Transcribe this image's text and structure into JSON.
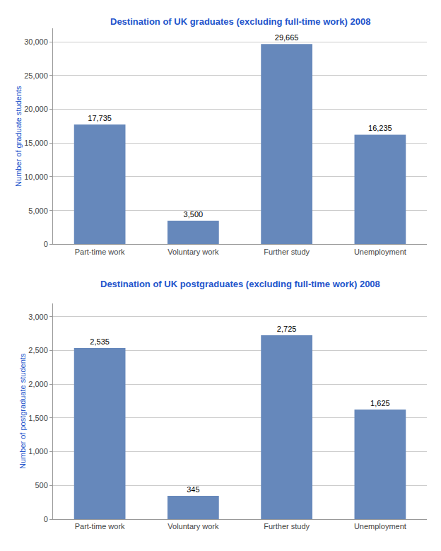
{
  "chart_data": [
    {
      "type": "bar",
      "title": "Destination of UK graduates (excluding full-time work) 2008",
      "categories": [
        "Part-time work",
        "Voluntary work",
        "Further study",
        "Unemployment"
      ],
      "values": [
        17735,
        3500,
        29665,
        16235
      ],
      "value_labels": [
        "17,735",
        "3,500",
        "29,665",
        "16,235"
      ],
      "color": "#6688BB",
      "ylabel": "Number of graduate students",
      "ylim": [
        0,
        32000
      ],
      "yticks": [
        0,
        {
          "value": 5000,
          "label": "5,000"
        },
        {
          "value": 10000,
          "label": "10,000"
        },
        {
          "value": 15000,
          "label": "15,000"
        },
        {
          "value": 20000,
          "label": "20,000"
        },
        {
          "value": 25000,
          "label": "25,000"
        },
        {
          "value": 30000,
          "label": "30,000"
        }
      ],
      "grid": true,
      "data_labels": true
    },
    {
      "type": "bar",
      "title": "Destination of UK postgraduates (excluding full-time work) 2008",
      "categories": [
        "Part-time work",
        "Voluntary work",
        "Further study",
        "Unemployment"
      ],
      "values": [
        2535,
        345,
        2725,
        1625
      ],
      "value_labels": [
        "2,535",
        "345",
        "2,725",
        "1,625"
      ],
      "color": "#6688BB",
      "ylabel": "Number of postgraduate students",
      "ylim": [
        0,
        3200
      ],
      "yticks": [
        0,
        500,
        {
          "value": 1000,
          "label": "1,000"
        },
        {
          "value": 1500,
          "label": "1,500"
        },
        {
          "value": 2000,
          "label": "2,000"
        },
        {
          "value": 2500,
          "label": "2,500"
        },
        {
          "value": 3000,
          "label": "3,000"
        }
      ],
      "grid": true,
      "data_labels": true
    }
  ]
}
